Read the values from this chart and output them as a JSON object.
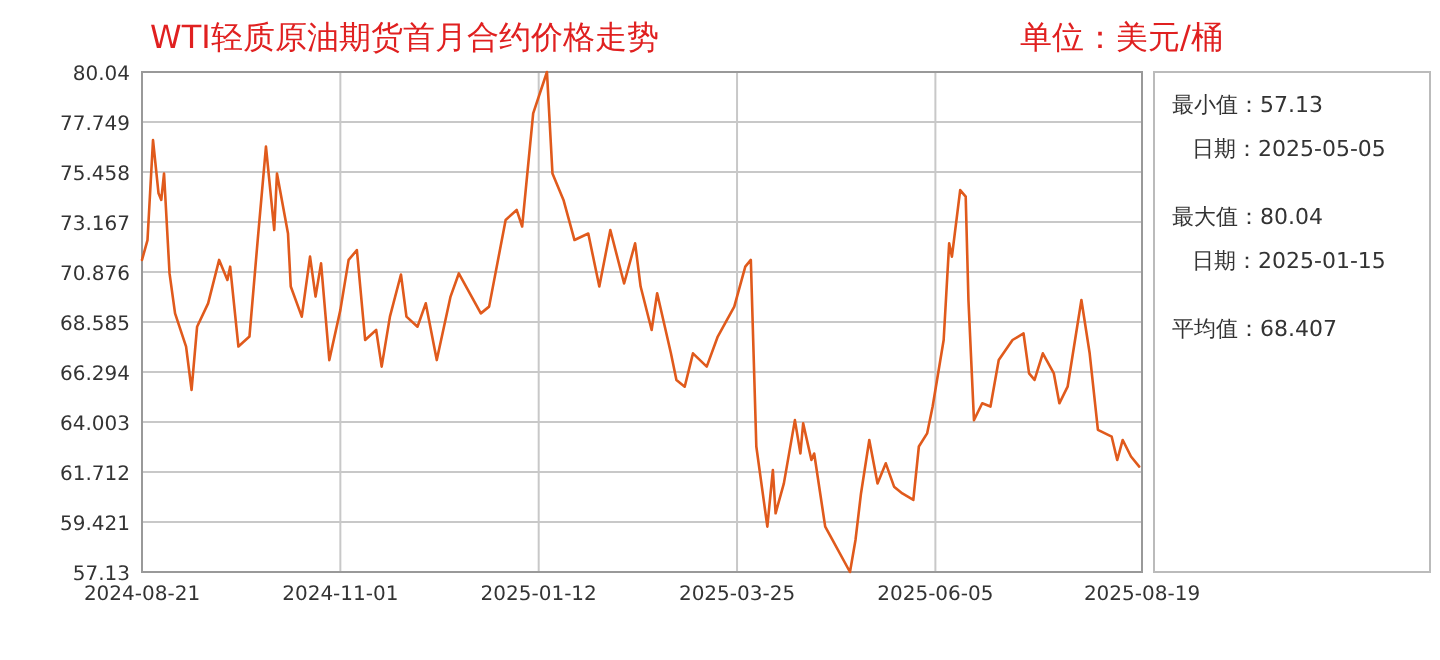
{
  "chart_data": {
    "type": "line",
    "title": "WTI轻质原油期货首月合约价格走势",
    "subtitle": "单位：美元/桶",
    "x": [
      "2024-08-21",
      "2024-08-23",
      "2024-08-25",
      "2024-08-27",
      "2024-08-28",
      "2024-08-29",
      "2024-08-31",
      "2024-09-02",
      "2024-09-06",
      "2024-09-08",
      "2024-09-10",
      "2024-09-14",
      "2024-09-18",
      "2024-09-21",
      "2024-09-22",
      "2024-09-25",
      "2024-09-29",
      "2024-10-02",
      "2024-10-05",
      "2024-10-08",
      "2024-10-09",
      "2024-10-13",
      "2024-10-14",
      "2024-10-18",
      "2024-10-21",
      "2024-10-23",
      "2024-10-25",
      "2024-10-28",
      "2024-11-01",
      "2024-11-04",
      "2024-11-07",
      "2024-11-10",
      "2024-11-14",
      "2024-11-16",
      "2024-11-19",
      "2024-11-23",
      "2024-11-25",
      "2024-11-29",
      "2024-12-02",
      "2024-12-06",
      "2024-12-11",
      "2024-12-14",
      "2024-12-22",
      "2024-12-25",
      "2024-12-31",
      "2025-01-04",
      "2025-01-06",
      "2025-01-10",
      "2025-01-15",
      "2025-01-17",
      "2025-01-21",
      "2025-01-25",
      "2025-01-30",
      "2025-02-03",
      "2025-02-07",
      "2025-02-12",
      "2025-02-16",
      "2025-02-18",
      "2025-02-22",
      "2025-02-24",
      "2025-03-01",
      "2025-03-03",
      "2025-03-06",
      "2025-03-09",
      "2025-03-14",
      "2025-03-18",
      "2025-03-24",
      "2025-03-28",
      "2025-03-30",
      "2025-04-01",
      "2025-04-03",
      "2025-04-05",
      "2025-04-07",
      "2025-04-08",
      "2025-04-11",
      "2025-04-15",
      "2025-04-17",
      "2025-04-18",
      "2025-04-21",
      "2025-04-22",
      "2025-04-26",
      "2025-04-28",
      "2025-05-05",
      "2025-05-07",
      "2025-05-09",
      "2025-05-12",
      "2025-05-15",
      "2025-05-18",
      "2025-05-21",
      "2025-05-24",
      "2025-05-28",
      "2025-05-30",
      "2025-06-02",
      "2025-06-04",
      "2025-06-08",
      "2025-06-10",
      "2025-06-11",
      "2025-06-14",
      "2025-06-16",
      "2025-06-17",
      "2025-06-19",
      "2025-06-22",
      "2025-06-25",
      "2025-06-28",
      "2025-07-03",
      "2025-07-07",
      "2025-07-09",
      "2025-07-11",
      "2025-07-14",
      "2025-07-18",
      "2025-07-20",
      "2025-07-23",
      "2025-07-28",
      "2025-07-31",
      "2025-08-03",
      "2025-08-08",
      "2025-08-10",
      "2025-08-12",
      "2025-08-15",
      "2025-08-18"
    ],
    "series": [
      {
        "color": "#e05a1c",
        "values": [
          71.43,
          72.34,
          76.92,
          74.48,
          74.18,
          75.39,
          70.81,
          68.98,
          67.46,
          65.47,
          68.37,
          69.44,
          71.43,
          70.51,
          71.12,
          67.46,
          67.92,
          72.34,
          76.62,
          72.8,
          75.39,
          72.64,
          70.21,
          68.83,
          71.58,
          69.75,
          71.27,
          66.84,
          69.13,
          71.43,
          71.88,
          67.76,
          68.22,
          66.54,
          68.83,
          70.76,
          68.83,
          68.37,
          69.44,
          66.84,
          69.75,
          70.81,
          68.98,
          69.29,
          73.26,
          73.72,
          72.96,
          78.14,
          80.04,
          75.39,
          74.18,
          72.34,
          72.64,
          70.21,
          72.8,
          70.35,
          72.19,
          70.21,
          68.22,
          69.9,
          67.15,
          65.93,
          65.62,
          67.15,
          66.54,
          67.92,
          69.29,
          71.12,
          71.43,
          62.88,
          61.04,
          59.21,
          61.8,
          59.82,
          61.19,
          64.09,
          62.56,
          63.94,
          62.26,
          62.56,
          59.21,
          58.75,
          57.13,
          58.6,
          60.73,
          63.18,
          61.19,
          62.11,
          61.04,
          60.73,
          60.43,
          62.88,
          63.48,
          64.71,
          67.76,
          72.19,
          71.58,
          74.63,
          74.33,
          69.59,
          64.09,
          64.86,
          64.71,
          66.84,
          67.76,
          68.06,
          66.23,
          65.93,
          67.15,
          66.23,
          64.86,
          65.62,
          69.59,
          67.15,
          63.64,
          63.33,
          62.26,
          63.18,
          62.42,
          61.96
        ]
      }
    ],
    "xlim": [
      "2024-08-21",
      "2025-08-19"
    ],
    "xticks": [
      "2024-08-21",
      "2024-11-01",
      "2025-01-12",
      "2025-03-25",
      "2025-06-05",
      "2025-08-19"
    ],
    "ylim": [
      57.13,
      80.04
    ],
    "yticks": [
      57.13,
      59.421,
      61.712,
      64.003,
      66.294,
      68.585,
      70.876,
      73.167,
      75.458,
      77.749,
      80.04
    ],
    "grid": true,
    "annotations": [
      "最小值：57.13",
      "日期：2025-05-05",
      "最大值：80.04",
      "日期：2025-01-15",
      "平均值：68.407"
    ]
  }
}
